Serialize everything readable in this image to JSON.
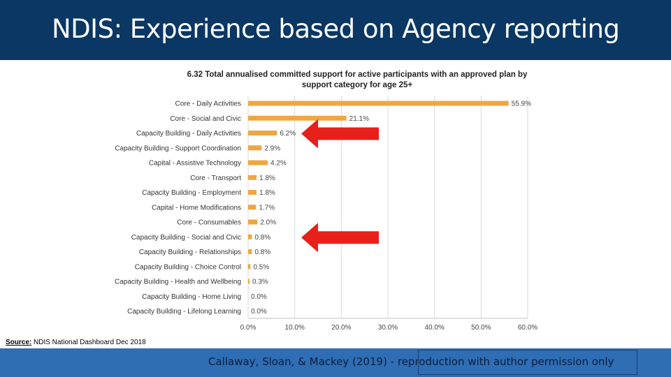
{
  "slide": {
    "title": "NDIS: Experience based on Agency reporting",
    "source_label": "Source:",
    "source_text": "NDIS National Dashboard Dec 2018",
    "citation": "Callaway, Sloan, & Mackey (2019) - reproduction with author permission only"
  },
  "colors": {
    "header": "#0a3763",
    "footer": "#2f6db5",
    "bar": "#f0a640",
    "arrow": "#e8201a"
  },
  "chart_data": {
    "type": "bar",
    "orientation": "horizontal",
    "title_lines": [
      "6.32 Total annualised committed support for active participants with an approved plan by",
      "support category for age 25+"
    ],
    "categories": [
      "Core - Daily Activities",
      "Core - Social and Civic",
      "Capacity Building - Daily Activities",
      "Capacity Building - Support Coordination",
      "Capital - Assistive Technology",
      "Core - Transport",
      "Capacity Building - Employment",
      "Capital - Home Modifications",
      "Core - Consumables",
      "Capacity Building - Social and Civic",
      "Capacity Building - Relationships",
      "Capacity Building - Choice Control",
      "Capacity Building - Health and Wellbeing",
      "Capacity Building - Home Living",
      "Capacity Building - Lifelong Learning"
    ],
    "values": [
      55.9,
      21.1,
      6.2,
      2.9,
      4.2,
      1.8,
      1.8,
      1.7,
      2.0,
      0.8,
      0.8,
      0.5,
      0.3,
      0.0,
      0.0
    ],
    "value_labels": [
      "55.9%",
      "21.1%",
      "6.2%",
      "2.9%",
      "4.2%",
      "1.8%",
      "1.8%",
      "1.7%",
      "2.0%",
      "0.8%",
      "0.8%",
      "0.5%",
      "0.3%",
      "0.0%",
      "0.0%"
    ],
    "xlim": [
      0,
      60
    ],
    "xticks": [
      0,
      10,
      20,
      30,
      40,
      50,
      60
    ],
    "xtick_labels": [
      "0.0%",
      "10.0%",
      "20.0%",
      "30.0%",
      "40.0%",
      "50.0%",
      "60.0%"
    ],
    "grid": true,
    "arrows": [
      {
        "points_to": "Capacity Building - Daily Activities",
        "direction": "left"
      },
      {
        "points_to": "Capacity Building - Social and Civic",
        "direction": "left"
      }
    ]
  }
}
